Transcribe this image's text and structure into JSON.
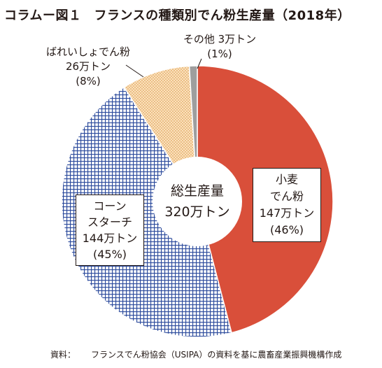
{
  "title": {
    "number": "コラムー図１",
    "text": "フランスの種類別でん粉生産量（2018年）"
  },
  "source_note": {
    "label": "資料：",
    "text": "フランスでん粉協会（USIPA）の資料を基に農畜産業振興機構作成"
  },
  "center": {
    "line1": "総生産量",
    "line2": "320万トン"
  },
  "chart_data": {
    "type": "pie",
    "donut": true,
    "unit": "万トン",
    "total": 320,
    "title": "フランスの種類別でん粉生産量（2018年）",
    "slices": [
      {
        "name": "小麦でん粉",
        "value": 147,
        "percent": 46,
        "color": "#d94f3a",
        "fill": "solid"
      },
      {
        "name": "コーンスターチ",
        "value": 144,
        "percent": 45,
        "color": "#2b4a9c",
        "fill": "grid-pattern"
      },
      {
        "name": "ばれいしょでん粉",
        "value": 26,
        "percent": 8,
        "color": "#f7cf98",
        "fill": "dot-pattern"
      },
      {
        "name": "その他",
        "value": 3,
        "percent": 1,
        "color": "#9e9e9e",
        "fill": "solid"
      }
    ],
    "labels": [
      {
        "line1": "小麦",
        "line2": "でん粉",
        "line3": "147万トン",
        "line4": "(46%)"
      },
      {
        "line1": "コーン",
        "line2": "スターチ",
        "line3": "144万トン",
        "line4": "(45%)"
      },
      {
        "line1": "ばれいしょでん粉",
        "line2": "26万トン",
        "line3": "(8%)"
      },
      {
        "line1": "その他 3万トン",
        "line2": "(1%)"
      }
    ]
  }
}
